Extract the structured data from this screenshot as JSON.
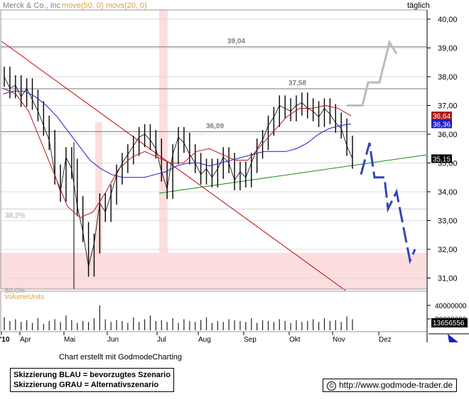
{
  "header": {
    "title": "Merck & Co., Inc",
    "indicators": "move(50, 0) movs(20, 0)",
    "period": "täglich"
  },
  "colors": {
    "price": "#000000",
    "ma_long": "#1c1cc8",
    "ma_short": "#b01818",
    "trend_down": "#cc0000",
    "trend_up": "#1e8a1e",
    "scenario_blue": "#3344bb",
    "scenario_gray": "#bbbbbb",
    "zone": "#fcdede",
    "title_gray": "#7e7e7e"
  },
  "chart_data": {
    "type": "line",
    "title": "Merck & Co., Inc",
    "x_ticks": [
      "'10",
      "Apr",
      "Mai",
      "Jun",
      "Jul",
      "Aug",
      "Sep",
      "Okt",
      "Nov",
      "Dez"
    ],
    "y_ticks": [
      "40,00",
      "39,00",
      "38,00",
      "37,00",
      "36,00",
      "35,00",
      "34,00",
      "33,00",
      "32,00",
      "31,00"
    ],
    "ylim": [
      30.7,
      40.3
    ],
    "levels": [
      {
        "label": "39,04",
        "value": 39.04
      },
      {
        "label": "37,58",
        "value": 37.58
      },
      {
        "label": "36,09",
        "value": 36.09
      }
    ],
    "fib_labels": [
      {
        "label": "38,2%",
        "value": 33.4
      },
      {
        "label": "50,0%",
        "value": 30.8
      }
    ],
    "last_values": [
      {
        "label": "36,64",
        "series": "ma_short"
      },
      {
        "label": "36,36",
        "series": "ma_long"
      },
      {
        "label": "35,15",
        "series": "price"
      }
    ],
    "series": [
      {
        "name": "close",
        "values": [
          38.0,
          37.6,
          37.7,
          37.3,
          37.6,
          37.2,
          36.8,
          36.3,
          35.8,
          34.6,
          34.0,
          35.2,
          34.8,
          33.5,
          32.6,
          31.4,
          32.2,
          33.6,
          33.3,
          33.9,
          34.6,
          35.0,
          35.3,
          35.6,
          35.9,
          36.0,
          35.8,
          35.5,
          34.7,
          34.1,
          35.3,
          35.9,
          35.7,
          35.3,
          35.0,
          34.6,
          34.8,
          34.5,
          34.8,
          35.2,
          35.0,
          34.4,
          34.7,
          34.5,
          35.0,
          35.5,
          35.8,
          36.3,
          36.6,
          37.0,
          36.9,
          36.8,
          37.0,
          37.1,
          36.9,
          36.8,
          36.6,
          36.9,
          36.7,
          36.4,
          36.2,
          35.6,
          35.15
        ]
      },
      {
        "name": "move(50, 0)",
        "values": [
          37.4,
          37.5,
          37.5,
          37.3,
          37.0,
          36.6,
          36.1,
          35.6,
          35.1,
          34.8,
          34.6,
          34.5,
          34.5,
          34.5,
          34.6,
          34.7,
          34.9,
          35.0,
          35.0,
          34.9,
          35.0,
          35.1,
          35.2,
          35.3,
          35.4,
          35.4,
          35.4,
          35.5,
          35.7,
          36.0,
          36.2,
          36.3,
          36.36
        ]
      },
      {
        "name": "movs(20, 0)",
        "values": [
          37.6,
          37.4,
          36.8,
          35.7,
          34.6,
          33.5,
          33.1,
          33.3,
          34.0,
          34.8,
          35.2,
          35.4,
          35.2,
          35.0,
          35.0,
          35.4,
          35.5,
          35.3,
          35.1,
          35.1,
          35.6,
          36.1,
          36.6,
          36.9,
          36.9,
          37.0,
          36.9,
          36.64
        ]
      }
    ],
    "scenarios": [
      {
        "name": "Skizzierung BLAU = bevorzugtes Szenario",
        "values": [
          34.6,
          35.7,
          34.5,
          34.5,
          33.4,
          34.0,
          31.6,
          32.0
        ]
      },
      {
        "name": "Skizzierung GRAU = Alternativszenario",
        "values": [
          37.0,
          37.0,
          37.8,
          37.8,
          39.2,
          38.8
        ]
      }
    ],
    "volume": {
      "label": "VolumeUnits",
      "y_ticks": [
        "40000000",
        "30000000"
      ],
      "last": "13656556",
      "values": [
        14,
        10,
        12,
        9,
        11,
        8,
        13,
        7,
        10,
        12,
        9,
        16,
        11,
        8,
        10,
        9,
        13,
        27,
        12,
        9,
        11,
        10,
        8,
        14,
        9,
        12,
        16,
        10,
        11,
        9,
        13,
        8,
        12,
        10,
        9,
        11,
        14,
        8,
        10,
        9,
        12,
        11,
        10,
        9,
        13,
        8,
        11,
        10,
        9,
        12,
        10,
        8,
        11,
        9,
        10,
        12,
        9,
        13,
        10,
        11,
        9,
        15,
        12
      ]
    }
  },
  "footer": {
    "credit": "Chart erstellt mit GodmodeCharting",
    "legend_blue": "Skizzierung BLAU = bevorzugtes Szenario",
    "legend_gray": "Skizzierung GRAU = Alternativszenario",
    "url": "http://www.godmode-trader.de",
    "copyright_glyph": "©"
  }
}
